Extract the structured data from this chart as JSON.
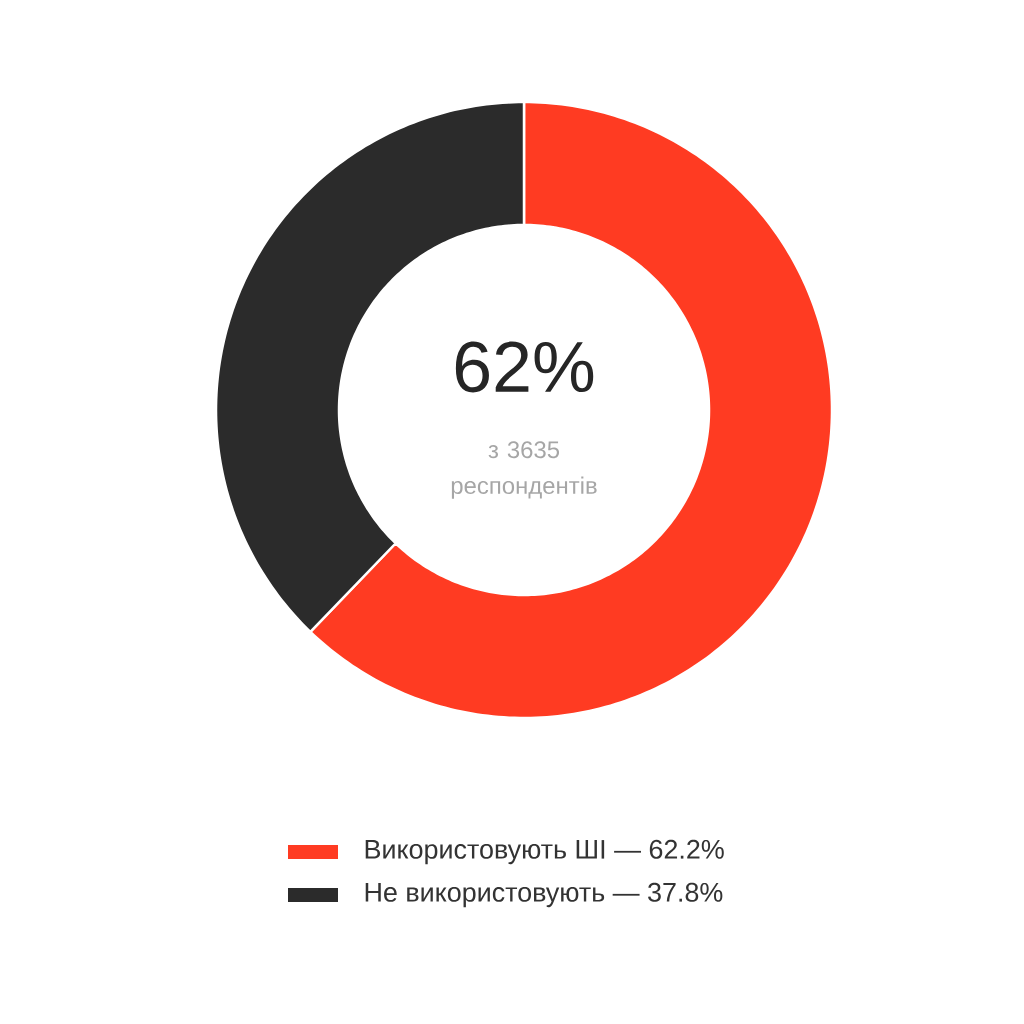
{
  "chart_data": {
    "type": "donut",
    "categories": [
      "Використовують ШІ — 62.2%",
      "Не використовують — 37.8%"
    ],
    "values": [
      62.2,
      37.8
    ],
    "colors": [
      "#ff3b22",
      "#2b2b2b"
    ],
    "legend": "bottom",
    "annotations": [
      "62%",
      "з 3635 респондентів"
    ]
  }
}
